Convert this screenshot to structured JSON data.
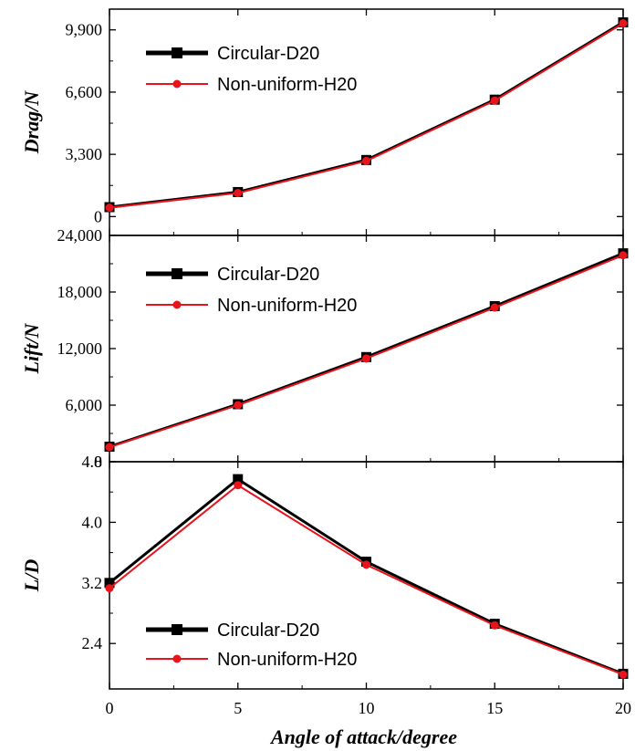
{
  "chart_data": {
    "type": "line",
    "x": [
      0,
      5,
      10,
      15,
      20
    ],
    "xlabel": "Angle of attack/degree",
    "x_ticks": [
      "0",
      "5",
      "10",
      "15",
      "20"
    ],
    "xlim": [
      0,
      20
    ],
    "panels": [
      {
        "ylabel": "Drag/N",
        "ylim": [
          -1000,
          11000
        ],
        "y_ticks": [
          0,
          3300,
          6600,
          9900
        ],
        "y_tick_labels": [
          "0",
          "3,300",
          "6,600",
          "9,900"
        ],
        "legend_position": "top-left",
        "series": [
          {
            "name": "Circular-D20",
            "values": [
              500,
              1300,
              3000,
              6200,
              10300
            ]
          },
          {
            "name": "Non-uniform-H20",
            "values": [
              470,
              1250,
              2950,
              6150,
              10250
            ]
          }
        ]
      },
      {
        "ylabel": "Lift/N",
        "ylim": [
          0,
          24000
        ],
        "y_ticks": [
          0,
          6000,
          12000,
          18000,
          24000
        ],
        "y_tick_labels": [
          "0",
          "6,000",
          "12,000",
          "18,000",
          "24,000"
        ],
        "legend_position": "top-left",
        "series": [
          {
            "name": "Circular-D20",
            "values": [
              1600,
              6100,
              11100,
              16500,
              22100
            ]
          },
          {
            "name": "Non-uniform-H20",
            "values": [
              1550,
              6000,
              10950,
              16350,
              21900
            ]
          }
        ]
      },
      {
        "ylabel": "L/D",
        "ylim": [
          1.8,
          4.8
        ],
        "y_ticks": [
          2.4,
          3.2,
          4.0,
          4.8
        ],
        "y_tick_labels": [
          "2.4",
          "3.2",
          "4.0",
          "4.8"
        ],
        "legend_position": "bottom-left",
        "series": [
          {
            "name": "Circular-D20",
            "values": [
              3.2,
              4.57,
              3.48,
              2.66,
              2.0
            ]
          },
          {
            "name": "Non-uniform-H20",
            "values": [
              3.13,
              4.49,
              3.44,
              2.64,
              1.99
            ]
          }
        ]
      }
    ],
    "colors": {
      "Circular-D20": "#000000",
      "Non-uniform-H20": "#e8141b"
    }
  }
}
